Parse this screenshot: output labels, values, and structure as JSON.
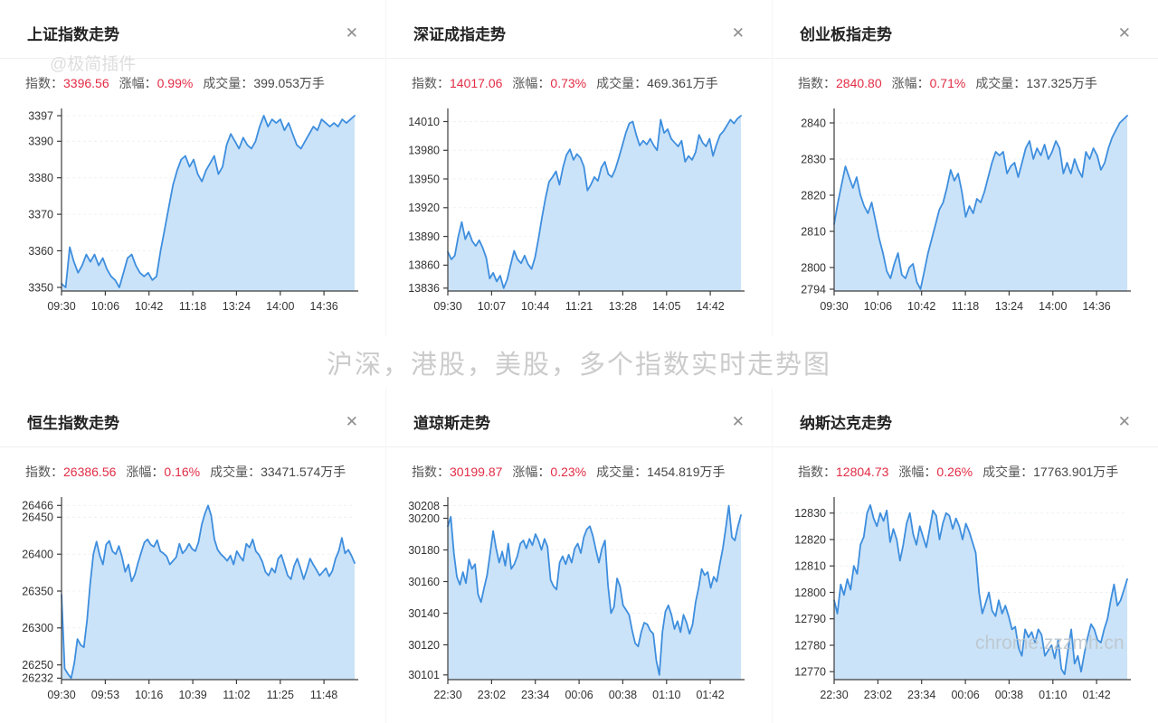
{
  "caption": "沪深，港股，美股，多个指数实时走势图",
  "watermarks": {
    "top_left": "@极简插件",
    "bottom_right": "chrome.zzzmh.cn"
  },
  "labels": {
    "index": "指数：",
    "change": "涨幅：",
    "volume": "成交量：",
    "close_icon": "✕"
  },
  "colors": {
    "line": "#3e8ede",
    "fill": "#cbe3f8",
    "axis": "#3c3c3c",
    "grid": "#eef1f4",
    "tick_text": "#333333",
    "value_red": "#e22c45"
  },
  "chart_data": [
    {
      "id": "shanghai",
      "type": "area",
      "title": "上证指数走势",
      "index_value": "3396.56",
      "change_pct": "0.99%",
      "volume": "399.053万手",
      "x_ticks": [
        "09:30",
        "10:06",
        "10:42",
        "11:18",
        "13:24",
        "14:00",
        "14:36"
      ],
      "y_ticks": [
        3397,
        3390,
        3380,
        3370,
        3360,
        3350
      ],
      "ylim": [
        3349,
        3397.5
      ],
      "values": [
        3351,
        3350,
        3361,
        3357,
        3354,
        3356,
        3359,
        3357,
        3359,
        3356,
        3358,
        3355,
        3353,
        3352,
        3350,
        3354,
        3358,
        3359,
        3356,
        3354,
        3353,
        3354,
        3352,
        3353,
        3360,
        3366,
        3372,
        3378,
        3382,
        3385,
        3386,
        3383,
        3385,
        3381,
        3379,
        3382,
        3384,
        3386,
        3381,
        3383,
        3389,
        3392,
        3390,
        3388,
        3391,
        3389,
        3388,
        3390,
        3394,
        3397,
        3394,
        3396,
        3395,
        3396,
        3393,
        3395,
        3392,
        3389,
        3388,
        3390,
        3392,
        3394,
        3393,
        3396,
        3395,
        3394,
        3395,
        3394,
        3396,
        3395,
        3396,
        3397
      ]
    },
    {
      "id": "shenzhen",
      "type": "area",
      "title": "深证成指走势",
      "index_value": "14017.06",
      "change_pct": "0.73%",
      "volume": "469.361万手",
      "x_ticks": [
        "09:30",
        "10:07",
        "10:44",
        "11:21",
        "13:28",
        "14:05",
        "14:42"
      ],
      "y_ticks": [
        14010,
        13980,
        13950,
        13920,
        13890,
        13860,
        13836
      ],
      "ylim": [
        13833,
        14018
      ],
      "values": [
        13874,
        13866,
        13870,
        13890,
        13905,
        13887,
        13895,
        13885,
        13880,
        13886,
        13878,
        13868,
        13846,
        13852,
        13843,
        13849,
        13836,
        13845,
        13860,
        13875,
        13866,
        13862,
        13870,
        13861,
        13856,
        13868,
        13888,
        13910,
        13930,
        13947,
        13952,
        13958,
        13944,
        13962,
        13975,
        13981,
        13970,
        13976,
        13972,
        13963,
        13938,
        13944,
        13952,
        13948,
        13962,
        13968,
        13955,
        13952,
        13960,
        13972,
        13985,
        13998,
        14008,
        14010,
        13996,
        13985,
        13990,
        13986,
        13992,
        13985,
        13980,
        14012,
        13998,
        14002,
        13992,
        13988,
        13984,
        13990,
        13968,
        13974,
        13970,
        13978,
        13996,
        13988,
        13984,
        13992,
        13974,
        13986,
        13996,
        14000,
        14006,
        14012,
        14008,
        14013,
        14016
      ]
    },
    {
      "id": "chinext",
      "type": "area",
      "title": "创业板指走势",
      "index_value": "2840.80",
      "change_pct": "0.71%",
      "volume": "137.325万手",
      "x_ticks": [
        "09:30",
        "10:06",
        "10:42",
        "11:18",
        "13:24",
        "14:00",
        "14:36"
      ],
      "y_ticks": [
        2840,
        2830,
        2820,
        2810,
        2800,
        2794
      ],
      "ylim": [
        2793.5,
        2842.5
      ],
      "values": [
        2812,
        2818,
        2823,
        2828,
        2825,
        2822,
        2825,
        2820,
        2817,
        2815,
        2818,
        2813,
        2808,
        2804,
        2799,
        2797,
        2801,
        2804,
        2798,
        2797,
        2800,
        2801,
        2796,
        2794,
        2799,
        2804,
        2808,
        2812,
        2816,
        2818,
        2822,
        2827,
        2824,
        2826,
        2821,
        2814,
        2817,
        2815,
        2819,
        2818,
        2821,
        2825,
        2829,
        2832,
        2831,
        2832,
        2826,
        2828,
        2829,
        2825,
        2829,
        2833,
        2835,
        2830,
        2833,
        2831,
        2834,
        2830,
        2832,
        2835,
        2833,
        2826,
        2829,
        2826,
        2830,
        2827,
        2825,
        2832,
        2830,
        2833,
        2831,
        2827,
        2829,
        2833,
        2836,
        2838,
        2840,
        2841,
        2842
      ]
    },
    {
      "id": "hangseng",
      "type": "area",
      "title": "恒生指数走势",
      "index_value": "26386.56",
      "change_pct": "0.16%",
      "volume": "33471.574万手",
      "x_ticks": [
        "09:30",
        "09:53",
        "10:16",
        "10:39",
        "11:02",
        "11:25",
        "11:48"
      ],
      "y_ticks": [
        26466,
        26450,
        26400,
        26350,
        26300,
        26250,
        26232
      ],
      "ylim": [
        26230,
        26470
      ],
      "values": [
        26345,
        26245,
        26238,
        26232,
        26252,
        26285,
        26277,
        26274,
        26310,
        26360,
        26400,
        26417,
        26398,
        26386,
        26413,
        26418,
        26404,
        26400,
        26411,
        26396,
        26376,
        26386,
        26363,
        26372,
        26388,
        26402,
        26416,
        26420,
        26413,
        26410,
        26419,
        26404,
        26401,
        26397,
        26386,
        26391,
        26396,
        26414,
        26401,
        26406,
        26414,
        26407,
        26404,
        26416,
        26440,
        26455,
        26466,
        26452,
        26420,
        26406,
        26400,
        26396,
        26391,
        26398,
        26386,
        26404,
        26397,
        26391,
        26414,
        26409,
        26420,
        26404,
        26399,
        26390,
        26376,
        26371,
        26381,
        26375,
        26394,
        26399,
        26385,
        26371,
        26366,
        26384,
        26394,
        26381,
        26366,
        26379,
        26394,
        26386,
        26379,
        26371,
        26376,
        26381,
        26370,
        26377,
        26394,
        26404,
        26422,
        26401,
        26406,
        26398,
        26388
      ]
    },
    {
      "id": "dowjones",
      "type": "area",
      "title": "道琼斯走势",
      "index_value": "30199.87",
      "change_pct": "0.23%",
      "volume": "1454.819万手",
      "x_ticks": [
        "22:30",
        "23:02",
        "23:34",
        "00:06",
        "00:38",
        "01:10",
        "01:42"
      ],
      "y_ticks": [
        30208,
        30200,
        30180,
        30160,
        30140,
        30120,
        30101
      ],
      "ylim": [
        30098,
        30210
      ],
      "values": [
        30195,
        30201,
        30178,
        30163,
        30158,
        30166,
        30159,
        30174,
        30168,
        30171,
        30152,
        30147,
        30156,
        30164,
        30178,
        30192,
        30181,
        30172,
        30179,
        30170,
        30184,
        30168,
        30171,
        30176,
        30184,
        30186,
        30181,
        30187,
        30183,
        30190,
        30186,
        30180,
        30187,
        30182,
        30161,
        30157,
        30155,
        30172,
        30176,
        30171,
        30177,
        30172,
        30181,
        30184,
        30178,
        30188,
        30193,
        30195,
        30189,
        30180,
        30172,
        30181,
        30186,
        30158,
        30140,
        30144,
        30162,
        30157,
        30145,
        30142,
        30139,
        30129,
        30121,
        30119,
        30128,
        30134,
        30133,
        30129,
        30127,
        30110,
        30101,
        30128,
        30141,
        30145,
        30139,
        30130,
        30135,
        30128,
        30139,
        30134,
        30127,
        30133,
        30147,
        30156,
        30168,
        30164,
        30166,
        30156,
        30163,
        30160,
        30171,
        30181,
        30194,
        30208,
        30188,
        30186,
        30195,
        30202
      ]
    },
    {
      "id": "nasdaq",
      "type": "area",
      "title": "纳斯达克走势",
      "index_value": "12804.73",
      "change_pct": "0.26%",
      "volume": "17763.901万手",
      "x_ticks": [
        "22:30",
        "23:02",
        "23:34",
        "00:06",
        "00:38",
        "01:10",
        "01:42"
      ],
      "y_ticks": [
        12830,
        12820,
        12810,
        12800,
        12790,
        12780,
        12770
      ],
      "ylim": [
        12767,
        12834
      ],
      "values": [
        12797,
        12792,
        12803,
        12799,
        12805,
        12801,
        12810,
        12807,
        12818,
        12821,
        12830,
        12833,
        12828,
        12825,
        12830,
        12827,
        12831,
        12819,
        12824,
        12820,
        12812,
        12818,
        12826,
        12830,
        12822,
        12818,
        12825,
        12821,
        12817,
        12824,
        12831,
        12829,
        12820,
        12826,
        12830,
        12829,
        12824,
        12828,
        12825,
        12820,
        12826,
        12823,
        12819,
        12815,
        12800,
        12792,
        12796,
        12800,
        12793,
        12791,
        12797,
        12792,
        12795,
        12791,
        12786,
        12787,
        12779,
        12776,
        12786,
        12783,
        12785,
        12781,
        12786,
        12784,
        12776,
        12778,
        12780,
        12775,
        12782,
        12771,
        12769,
        12778,
        12786,
        12773,
        12776,
        12770,
        12777,
        12783,
        12788,
        12786,
        12782,
        12781,
        12786,
        12790,
        12797,
        12803,
        12795,
        12797,
        12801,
        12805
      ]
    }
  ]
}
